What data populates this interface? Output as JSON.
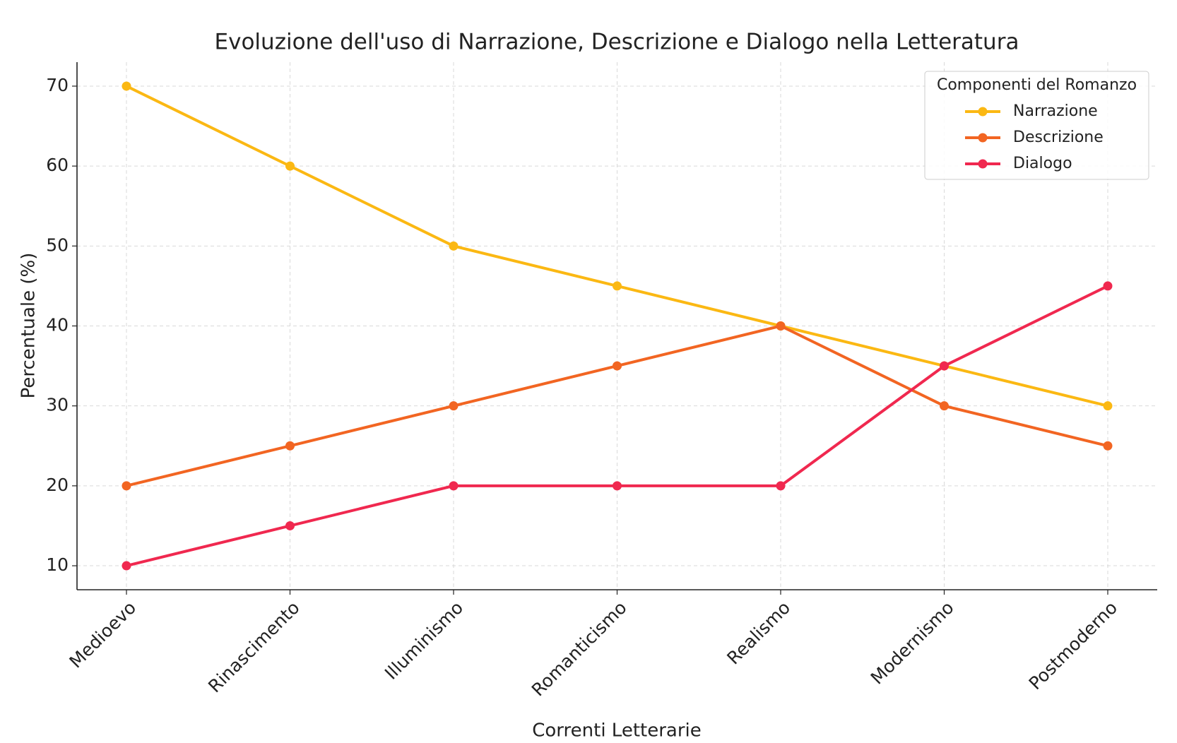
{
  "chart_data": {
    "type": "line",
    "title": "Evoluzione dell'uso di Narrazione, Descrizione e Dialogo nella Letteratura",
    "x_label": "Correnti Letterarie",
    "y_label": "Percentuale (%)",
    "categories": [
      "Medioevo",
      "Rinascimento",
      "Illuminismo",
      "Romanticismo",
      "Realismo",
      "Modernismo",
      "Postmoderno"
    ],
    "series": [
      {
        "name": "Narrazione",
        "color": "#fbb813",
        "values": [
          70,
          60,
          50,
          45,
          40,
          35,
          30
        ]
      },
      {
        "name": "Descrizione",
        "color": "#f26522",
        "values": [
          20,
          25,
          30,
          35,
          40,
          30,
          25
        ]
      },
      {
        "name": "Dialogo",
        "color": "#f0284f",
        "values": [
          10,
          15,
          20,
          20,
          20,
          35,
          45
        ]
      }
    ],
    "ylim": [
      7,
      73
    ],
    "yticks": [
      10,
      20,
      30,
      40,
      50,
      60,
      70
    ],
    "grid": true,
    "legend": "upper right",
    "legend_title": "Componenti del Romanzo"
  }
}
